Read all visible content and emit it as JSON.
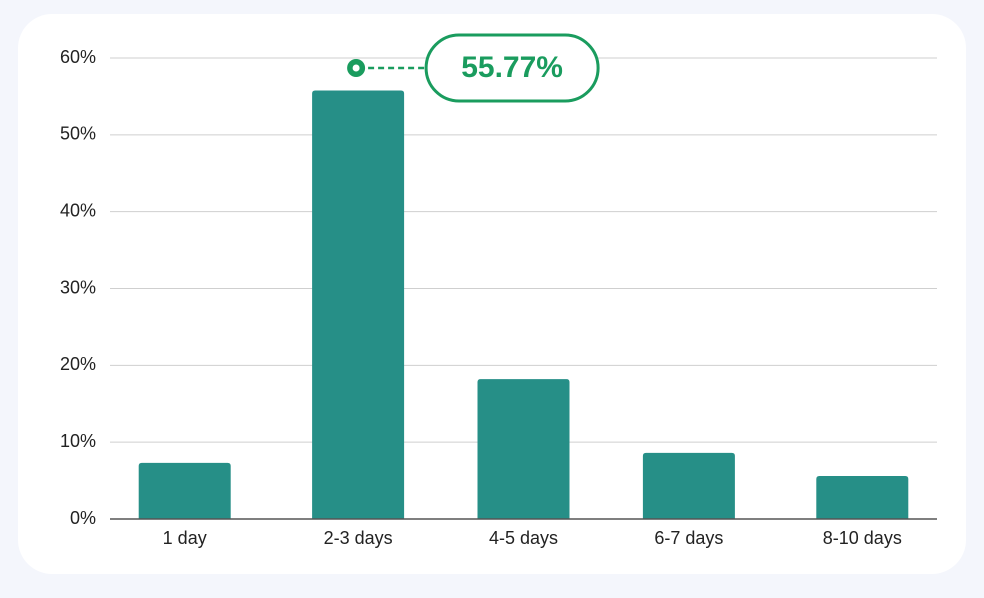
{
  "chart_data": {
    "type": "bar",
    "categories": [
      "1 day",
      "2-3 days",
      "4-5 days",
      "6-7 days",
      "8-10 days"
    ],
    "values": [
      7.3,
      55.77,
      18.2,
      8.6,
      5.6
    ],
    "value_labels": [
      null,
      "55.77%",
      null,
      null,
      null
    ],
    "color": "#268f87",
    "ylim": [
      0,
      60
    ],
    "yticks": [
      {
        "value": 0,
        "label": "0%"
      },
      {
        "value": 10,
        "label": "10%"
      },
      {
        "value": 20,
        "label": "20%"
      },
      {
        "value": 30,
        "label": "30%"
      },
      {
        "value": 40,
        "label": "40%"
      },
      {
        "value": 50,
        "label": "50%"
      },
      {
        "value": 60,
        "label": "60%"
      }
    ],
    "grid": true
  }
}
